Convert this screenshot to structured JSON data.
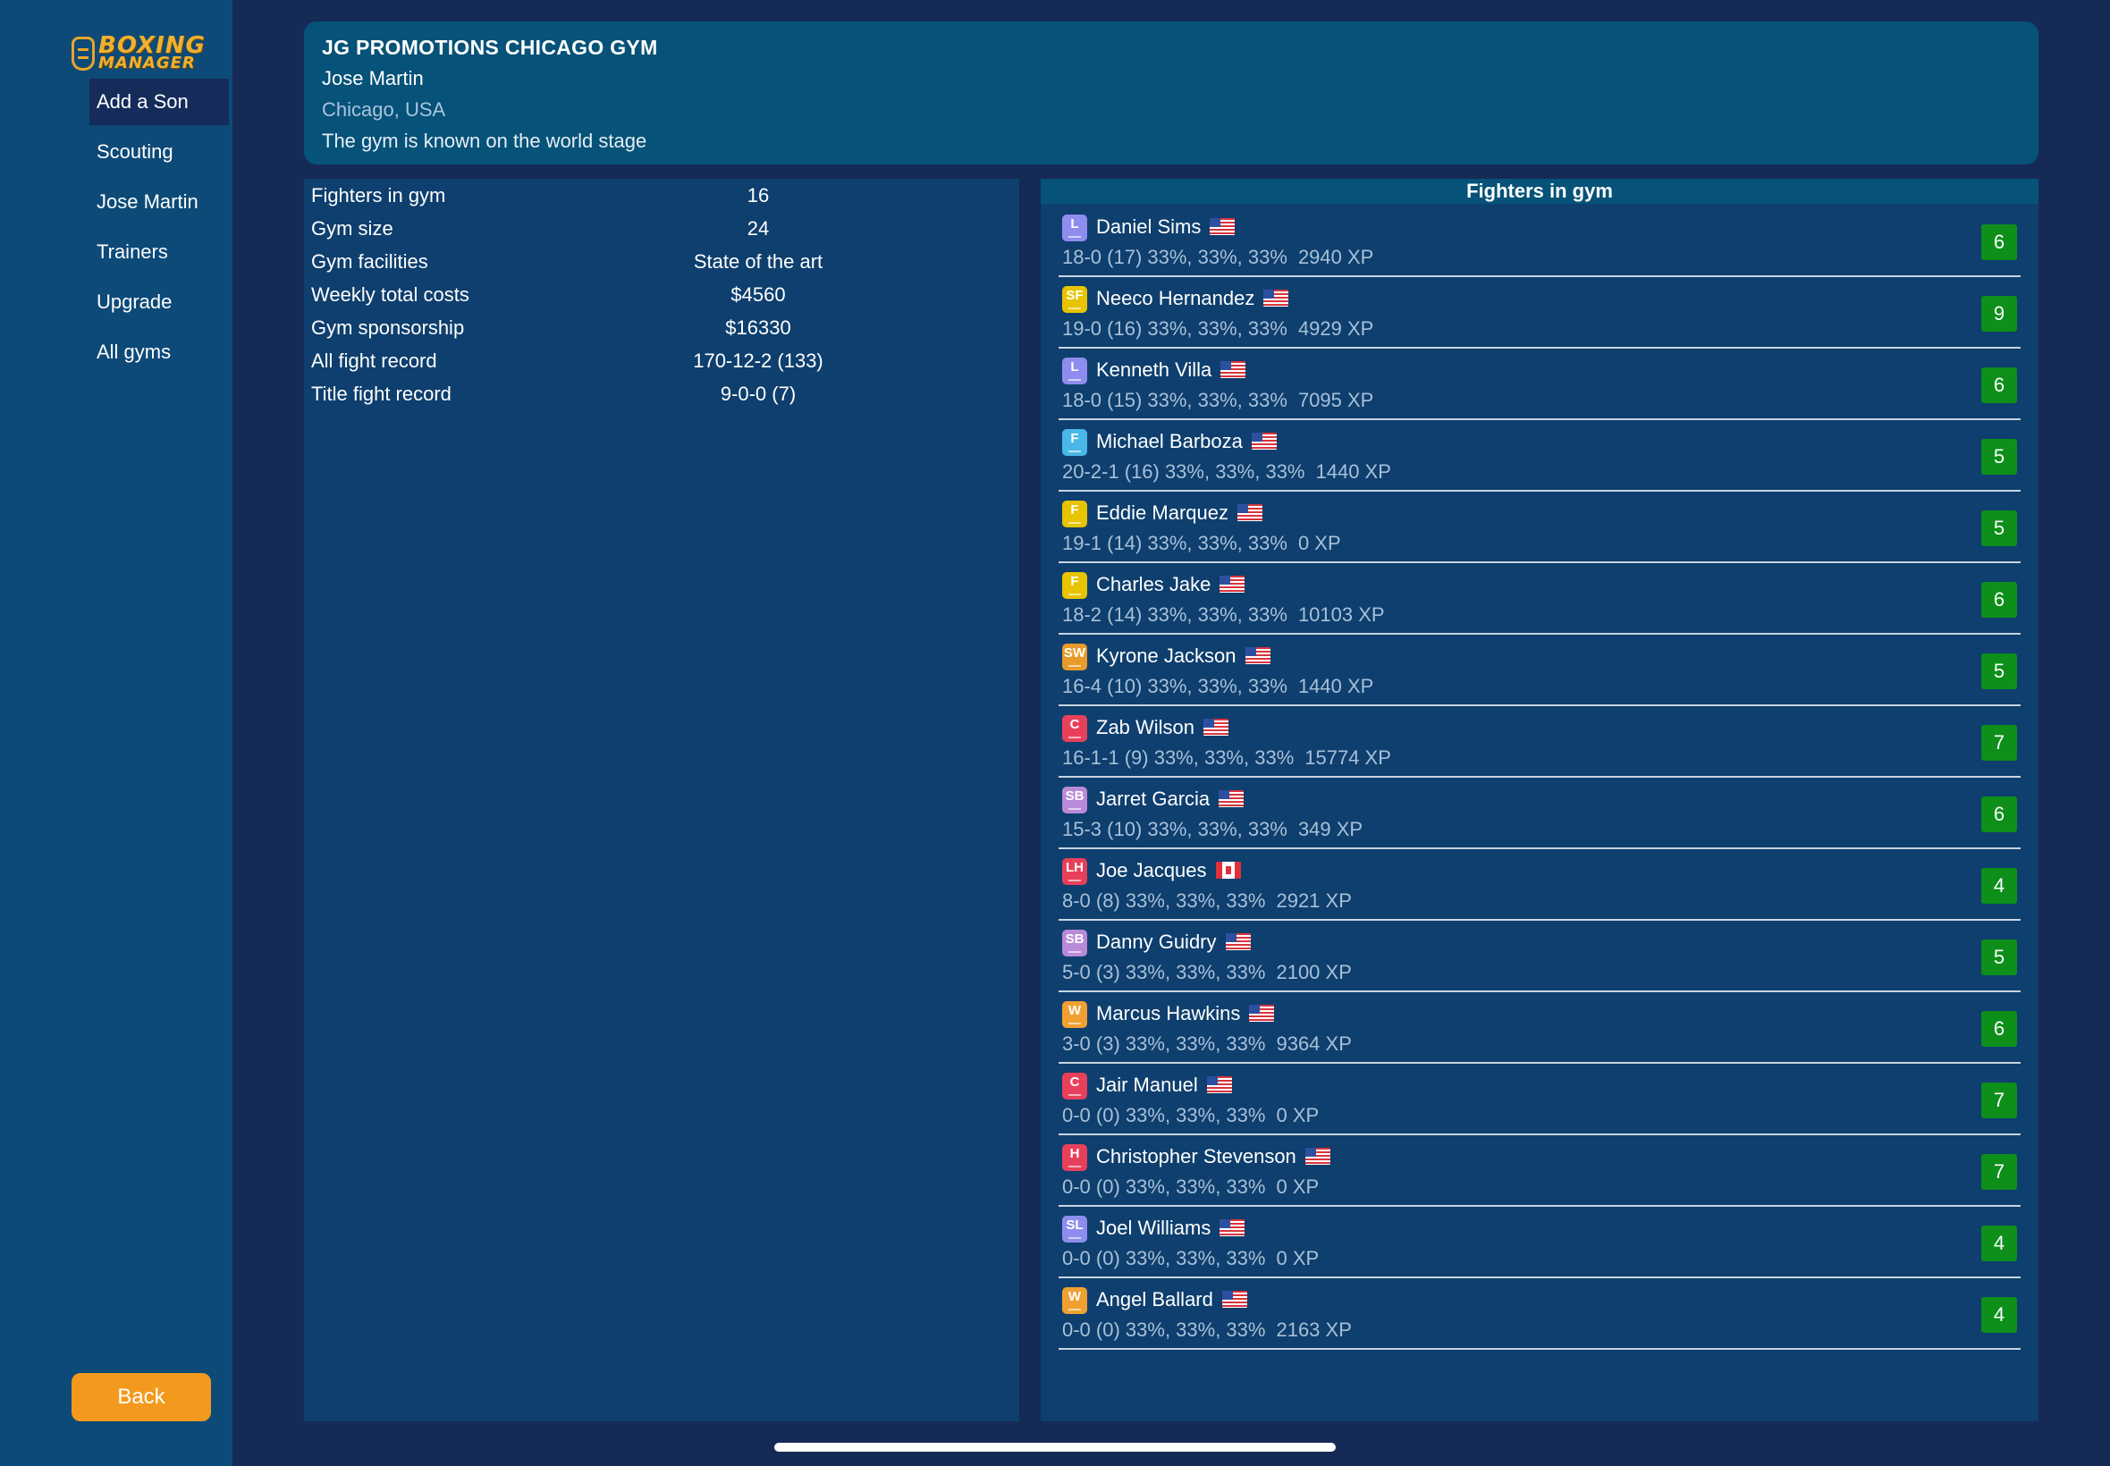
{
  "app": {
    "logo_line1": "BOXING",
    "logo_line2": "MANAGER"
  },
  "sidebar": {
    "items": [
      {
        "label": "Add a Son",
        "active": true
      },
      {
        "label": "Scouting",
        "active": false
      },
      {
        "label": "Jose Martin",
        "active": false
      },
      {
        "label": "Trainers",
        "active": false
      },
      {
        "label": "Upgrade",
        "active": false
      },
      {
        "label": "All gyms",
        "active": false
      }
    ],
    "back_label": "Back"
  },
  "header": {
    "gym_name": "JG PROMOTIONS CHICAGO GYM",
    "owner": "Jose Martin",
    "location": "Chicago, USA",
    "description": "The gym is known on the world stage"
  },
  "stats": [
    {
      "label": "Fighters in gym",
      "value": "16"
    },
    {
      "label": "Gym size",
      "value": "24"
    },
    {
      "label": "Gym facilities",
      "value": "State of the art"
    },
    {
      "label": "Weekly total costs",
      "value": "$4560"
    },
    {
      "label": "Gym sponsorship",
      "value": "$16330"
    },
    {
      "label": "All fight record",
      "value": "170-12-2 (133)"
    },
    {
      "label": "Title fight record",
      "value": "9-0-0 (7)"
    }
  ],
  "fighters_title": "Fighters in gym",
  "colors": {
    "background": "#162a56",
    "sidebar": "#0d4a78",
    "panel": "#0e3f6e",
    "header_card": "#065278",
    "rating_green": "#0d8f1a",
    "back_button": "#f39a1e"
  },
  "weight_class_colors": {
    "L": "#8f8cf0",
    "SF": "#e8c400",
    "F_fly": "#49b8e8",
    "F_feather": "#e8c400",
    "SW": "#e89a2a",
    "C": "#e8405a",
    "SB": "#b88ad8",
    "LH": "#e8405a",
    "W": "#f0a030",
    "H": "#e8405a",
    "SL": "#8f8cf0"
  },
  "fighters": [
    {
      "wc": "L",
      "wc_color": "#8f8cf0",
      "name": "Daniel Sims",
      "flag": "us",
      "record": "18-0 (17) 33%, 33%, 33%",
      "xp": "2940 XP",
      "rating": "6"
    },
    {
      "wc": "SF",
      "wc_color": "#e8c400",
      "name": "Neeco Hernandez",
      "flag": "us",
      "record": "19-0 (16) 33%, 33%, 33%",
      "xp": "4929 XP",
      "rating": "9"
    },
    {
      "wc": "L",
      "wc_color": "#8f8cf0",
      "name": "Kenneth Villa",
      "flag": "us",
      "record": "18-0 (15) 33%, 33%, 33%",
      "xp": "7095 XP",
      "rating": "6"
    },
    {
      "wc": "F",
      "wc_color": "#49b8e8",
      "name": "Michael Barboza",
      "flag": "us",
      "record": "20-2-1 (16) 33%, 33%, 33%",
      "xp": "1440 XP",
      "rating": "5"
    },
    {
      "wc": "F",
      "wc_color": "#e8c400",
      "name": "Eddie Marquez",
      "flag": "us",
      "record": "19-1 (14) 33%, 33%, 33%",
      "xp": "0 XP",
      "rating": "5"
    },
    {
      "wc": "F",
      "wc_color": "#e8c400",
      "name": "Charles Jake",
      "flag": "us",
      "record": "18-2 (14) 33%, 33%, 33%",
      "xp": "10103 XP",
      "rating": "6"
    },
    {
      "wc": "SW",
      "wc_color": "#e89a2a",
      "name": "Kyrone Jackson",
      "flag": "us",
      "record": "16-4 (10) 33%, 33%, 33%",
      "xp": "1440 XP",
      "rating": "5"
    },
    {
      "wc": "C",
      "wc_color": "#e8405a",
      "name": "Zab Wilson",
      "flag": "us",
      "record": "16-1-1 (9) 33%, 33%, 33%",
      "xp": "15774 XP",
      "rating": "7"
    },
    {
      "wc": "SB",
      "wc_color": "#b88ad8",
      "name": "Jarret Garcia",
      "flag": "us",
      "record": "15-3 (10) 33%, 33%, 33%",
      "xp": "349 XP",
      "rating": "6"
    },
    {
      "wc": "LH",
      "wc_color": "#e8405a",
      "name": "Joe Jacques",
      "flag": "ca",
      "record": "8-0 (8) 33%, 33%, 33%",
      "xp": "2921 XP",
      "rating": "4"
    },
    {
      "wc": "SB",
      "wc_color": "#b88ad8",
      "name": "Danny Guidry",
      "flag": "us",
      "record": "5-0 (3) 33%, 33%, 33%",
      "xp": "2100 XP",
      "rating": "5"
    },
    {
      "wc": "W",
      "wc_color": "#f0a030",
      "name": "Marcus Hawkins",
      "flag": "us",
      "record": "3-0 (3) 33%, 33%, 33%",
      "xp": "9364 XP",
      "rating": "6"
    },
    {
      "wc": "C",
      "wc_color": "#e8405a",
      "name": "Jair Manuel",
      "flag": "us",
      "record": "0-0 (0) 33%, 33%, 33%",
      "xp": "0 XP",
      "rating": "7"
    },
    {
      "wc": "H",
      "wc_color": "#e8405a",
      "name": "Christopher Stevenson",
      "flag": "us",
      "record": "0-0 (0) 33%, 33%, 33%",
      "xp": "0 XP",
      "rating": "7"
    },
    {
      "wc": "SL",
      "wc_color": "#8f8cf0",
      "name": "Joel Williams",
      "flag": "us",
      "record": "0-0 (0) 33%, 33%, 33%",
      "xp": "0 XP",
      "rating": "4"
    },
    {
      "wc": "W",
      "wc_color": "#f0a030",
      "name": "Angel Ballard",
      "flag": "us",
      "record": "0-0 (0) 33%, 33%, 33%",
      "xp": "2163 XP",
      "rating": "4"
    }
  ]
}
